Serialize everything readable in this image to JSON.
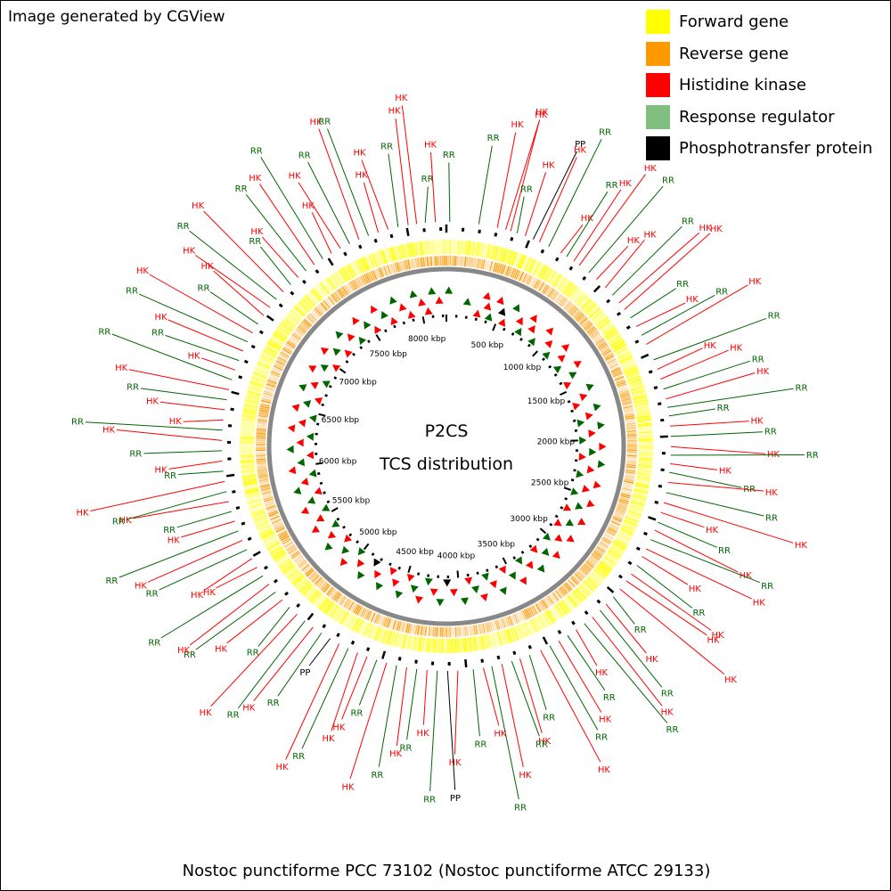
{
  "credit": "Image generated by CGView",
  "caption": "Nostoc punctiforme PCC 73102 (Nostoc punctiforme ATCC 29133)",
  "center_title": [
    "P2CS",
    "TCS distribution"
  ],
  "legend": [
    {
      "label": "Forward gene",
      "color": "#ffff00"
    },
    {
      "label": "Reverse gene",
      "color": "#ff9900"
    },
    {
      "label": "Histidine kinase",
      "color": "#ff0000"
    },
    {
      "label": "Response regulator",
      "color": "#7fbf7f"
    },
    {
      "label": "Phosphotransfer protein",
      "color": "#000000"
    }
  ],
  "genome_length_kbp": 8234,
  "kbp_ticks": [
    {
      "kbp": 500,
      "label": "500 kbp"
    },
    {
      "kbp": 1000,
      "label": "1000 kbp"
    },
    {
      "kbp": 1500,
      "label": "1500 kbp"
    },
    {
      "kbp": 2000,
      "label": "2000 kbp"
    },
    {
      "kbp": 2500,
      "label": "2500 kbp"
    },
    {
      "kbp": 3000,
      "label": "3000 kbp"
    },
    {
      "kbp": 3500,
      "label": "3500 kbp"
    },
    {
      "kbp": 4000,
      "label": "4000 kbp"
    },
    {
      "kbp": 4500,
      "label": "4500 kbp"
    },
    {
      "kbp": 5000,
      "label": "5000 kbp"
    },
    {
      "kbp": 5500,
      "label": "5500 kbp"
    },
    {
      "kbp": 6000,
      "label": "6000 kbp"
    },
    {
      "kbp": 6500,
      "label": "6500 kbp"
    },
    {
      "kbp": 7000,
      "label": "7000 kbp"
    },
    {
      "kbp": 7500,
      "label": "7500 kbp"
    },
    {
      "kbp": 8000,
      "label": "8000 kbp"
    }
  ],
  "feature_colors": {
    "HK": "#ff0000",
    "RR": "#006600",
    "PP": "#000000"
  },
  "features": [
    {
      "kbp": 20,
      "type": "RR"
    },
    {
      "kbp": 190,
      "type": "RR"
    },
    {
      "kbp": 300,
      "type": "HK"
    },
    {
      "kbp": 350,
      "type": "HK"
    },
    {
      "kbp": 380,
      "type": "HK"
    },
    {
      "kbp": 420,
      "type": "RR"
    },
    {
      "kbp": 470,
      "type": "HK"
    },
    {
      "kbp": 520,
      "type": "PP"
    },
    {
      "kbp": 560,
      "type": "HK"
    },
    {
      "kbp": 620,
      "type": "RR"
    },
    {
      "kbp": 700,
      "type": "HK"
    },
    {
      "kbp": 740,
      "type": "RR"
    },
    {
      "kbp": 790,
      "type": "HK"
    },
    {
      "kbp": 830,
      "type": "HK"
    },
    {
      "kbp": 900,
      "type": "RR"
    },
    {
      "kbp": 960,
      "type": "HK"
    },
    {
      "kbp": 1030,
      "type": "HK"
    },
    {
      "kbp": 1090,
      "type": "RR"
    },
    {
      "kbp": 1150,
      "type": "HK"
    },
    {
      "kbp": 1200,
      "type": "HK"
    },
    {
      "kbp": 1260,
      "type": "RR"
    },
    {
      "kbp": 1320,
      "type": "HK"
    },
    {
      "kbp": 1380,
      "type": "RR"
    },
    {
      "kbp": 1440,
      "type": "HK"
    },
    {
      "kbp": 1540,
      "type": "RR"
    },
    {
      "kbp": 1600,
      "type": "HK"
    },
    {
      "kbp": 1660,
      "type": "HK"
    },
    {
      "kbp": 1720,
      "type": "RR"
    },
    {
      "kbp": 1780,
      "type": "HK"
    },
    {
      "kbp": 1830,
      "type": "RR"
    },
    {
      "kbp": 1880,
      "type": "RR"
    },
    {
      "kbp": 1940,
      "type": "HK"
    },
    {
      "kbp": 2000,
      "type": "RR"
    },
    {
      "kbp": 2060,
      "type": "HK"
    },
    {
      "kbp": 2110,
      "type": "RR"
    },
    {
      "kbp": 2160,
      "type": "HK"
    },
    {
      "kbp": 2210,
      "type": "RR"
    },
    {
      "kbp": 2270,
      "type": "HK"
    },
    {
      "kbp": 2330,
      "type": "RR"
    },
    {
      "kbp": 2390,
      "type": "HK"
    },
    {
      "kbp": 2450,
      "type": "HK"
    },
    {
      "kbp": 2510,
      "type": "RR"
    },
    {
      "kbp": 2560,
      "type": "HK"
    },
    {
      "kbp": 2620,
      "type": "RR"
    },
    {
      "kbp": 2680,
      "type": "HK"
    },
    {
      "kbp": 2730,
      "type": "HK"
    },
    {
      "kbp": 2790,
      "type": "RR"
    },
    {
      "kbp": 2850,
      "type": "HK"
    },
    {
      "kbp": 2900,
      "type": "HK"
    },
    {
      "kbp": 2960,
      "type": "HK"
    },
    {
      "kbp": 3020,
      "type": "RR"
    },
    {
      "kbp": 3080,
      "type": "HK"
    },
    {
      "kbp": 3130,
      "type": "RR"
    },
    {
      "kbp": 3190,
      "type": "HK"
    },
    {
      "kbp": 3250,
      "type": "RR"
    },
    {
      "kbp": 3310,
      "type": "HK"
    },
    {
      "kbp": 3370,
      "type": "RR"
    },
    {
      "kbp": 3430,
      "type": "HK"
    },
    {
      "kbp": 3490,
      "type": "RR"
    },
    {
      "kbp": 3550,
      "type": "HK"
    },
    {
      "kbp": 3620,
      "type": "RR"
    },
    {
      "kbp": 3680,
      "type": "HK"
    },
    {
      "kbp": 3730,
      "type": "RR"
    },
    {
      "kbp": 3790,
      "type": "HK"
    },
    {
      "kbp": 3850,
      "type": "RR"
    },
    {
      "kbp": 3900,
      "type": "HK"
    },
    {
      "kbp": 3960,
      "type": "RR"
    },
    {
      "kbp": 4050,
      "type": "HK"
    },
    {
      "kbp": 4110,
      "type": "PP"
    },
    {
      "kbp": 4170,
      "type": "RR"
    },
    {
      "kbp": 4230,
      "type": "HK"
    },
    {
      "kbp": 4290,
      "type": "RR"
    },
    {
      "kbp": 4350,
      "type": "HK"
    },
    {
      "kbp": 4410,
      "type": "RR"
    },
    {
      "kbp": 4470,
      "type": "HK"
    },
    {
      "kbp": 4530,
      "type": "RR"
    },
    {
      "kbp": 4590,
      "type": "HK"
    },
    {
      "kbp": 4650,
      "type": "HK"
    },
    {
      "kbp": 4710,
      "type": "RR"
    },
    {
      "kbp": 4770,
      "type": "HK"
    },
    {
      "kbp": 4830,
      "type": "PP"
    },
    {
      "kbp": 4890,
      "type": "RR"
    },
    {
      "kbp": 4950,
      "type": "HK"
    },
    {
      "kbp": 5010,
      "type": "RR"
    },
    {
      "kbp": 5070,
      "type": "HK"
    },
    {
      "kbp": 5130,
      "type": "RR"
    },
    {
      "kbp": 5190,
      "type": "HK"
    },
    {
      "kbp": 5250,
      "type": "RR"
    },
    {
      "kbp": 5310,
      "type": "HK"
    },
    {
      "kbp": 5370,
      "type": "RR"
    },
    {
      "kbp": 5430,
      "type": "HK"
    },
    {
      "kbp": 5490,
      "type": "HK"
    },
    {
      "kbp": 5550,
      "type": "RR"
    },
    {
      "kbp": 5610,
      "type": "HK"
    },
    {
      "kbp": 5670,
      "type": "RR"
    },
    {
      "kbp": 5730,
      "type": "HK"
    },
    {
      "kbp": 5790,
      "type": "RR"
    },
    {
      "kbp": 5850,
      "type": "HK"
    },
    {
      "kbp": 5910,
      "type": "RR"
    },
    {
      "kbp": 5970,
      "type": "HK"
    },
    {
      "kbp": 6030,
      "type": "RR"
    },
    {
      "kbp": 6090,
      "type": "HK"
    },
    {
      "kbp": 6150,
      "type": "RR"
    },
    {
      "kbp": 6210,
      "type": "HK"
    },
    {
      "kbp": 6270,
      "type": "RR"
    },
    {
      "kbp": 6330,
      "type": "HK"
    },
    {
      "kbp": 6390,
      "type": "HK"
    },
    {
      "kbp": 6450,
      "type": "RR"
    },
    {
      "kbp": 6510,
      "type": "HK"
    },
    {
      "kbp": 6570,
      "type": "RR"
    },
    {
      "kbp": 6630,
      "type": "HK"
    },
    {
      "kbp": 6690,
      "type": "RR"
    },
    {
      "kbp": 6750,
      "type": "HK"
    },
    {
      "kbp": 6810,
      "type": "RR"
    },
    {
      "kbp": 6870,
      "type": "HK"
    },
    {
      "kbp": 6930,
      "type": "RR"
    },
    {
      "kbp": 6990,
      "type": "HK"
    },
    {
      "kbp": 7050,
      "type": "HK"
    },
    {
      "kbp": 7110,
      "type": "RR"
    },
    {
      "kbp": 7170,
      "type": "HK"
    },
    {
      "kbp": 7230,
      "type": "RR"
    },
    {
      "kbp": 7290,
      "type": "HK"
    },
    {
      "kbp": 7350,
      "type": "RR"
    },
    {
      "kbp": 7410,
      "type": "HK"
    },
    {
      "kbp": 7470,
      "type": "RR"
    },
    {
      "kbp": 7530,
      "type": "HK"
    },
    {
      "kbp": 7590,
      "type": "HK"
    },
    {
      "kbp": 7650,
      "type": "RR"
    },
    {
      "kbp": 7710,
      "type": "HK"
    },
    {
      "kbp": 7770,
      "type": "RR"
    },
    {
      "kbp": 7830,
      "type": "HK"
    },
    {
      "kbp": 7890,
      "type": "HK"
    },
    {
      "kbp": 7950,
      "type": "RR"
    },
    {
      "kbp": 8010,
      "type": "HK"
    },
    {
      "kbp": 8060,
      "type": "HK"
    },
    {
      "kbp": 8110,
      "type": "RR"
    },
    {
      "kbp": 8170,
      "type": "HK"
    }
  ]
}
